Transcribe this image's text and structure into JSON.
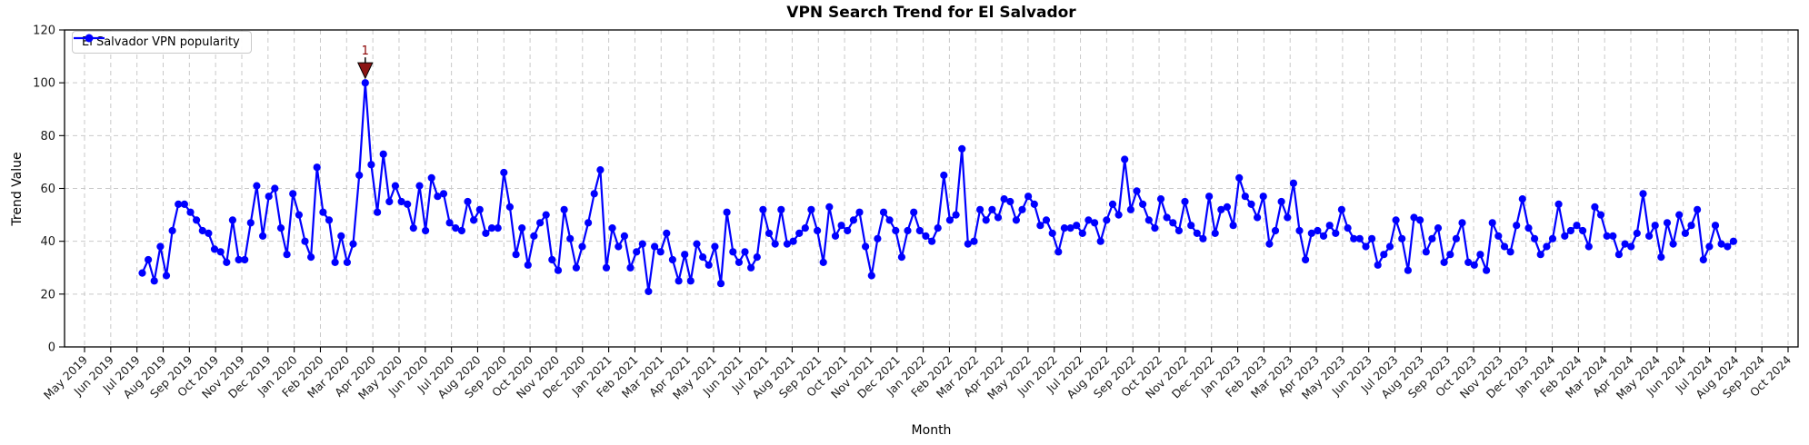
{
  "chart_data": {
    "type": "line",
    "title": "VPN Search Trend for El Salvador",
    "xlabel": "Month",
    "ylabel": "Trend Value",
    "ylim": [
      0,
      120
    ],
    "yticks": [
      0,
      20,
      40,
      60,
      80,
      100,
      120
    ],
    "grid": true,
    "background_color": "#ffffff",
    "grid_color": "#c9c9c9",
    "legend": {
      "label": "El Salvador VPN popularity",
      "position": "upper left"
    },
    "x_tick_labels": [
      "May 2019",
      "Jun 2019",
      "Jul 2019",
      "Aug 2019",
      "Sep 2019",
      "Oct 2019",
      "Nov 2019",
      "Dec 2019",
      "Jan 2020",
      "Feb 2020",
      "Mar 2020",
      "Apr 2020",
      "May 2020",
      "Jun 2020",
      "Jul 2020",
      "Aug 2020",
      "Sep 2020",
      "Oct 2020",
      "Nov 2020",
      "Dec 2020",
      "Jan 2021",
      "Feb 2021",
      "Mar 2021",
      "Apr 2021",
      "May 2021",
      "Jun 2021",
      "Jul 2021",
      "Aug 2021",
      "Sep 2021",
      "Oct 2021",
      "Nov 2021",
      "Dec 2021",
      "Jan 2022",
      "Feb 2022",
      "Mar 2022",
      "Apr 2022",
      "May 2022",
      "Jun 2022",
      "Jul 2022",
      "Aug 2022",
      "Sep 2022",
      "Oct 2022",
      "Nov 2022",
      "Dec 2022",
      "Jan 2023",
      "Feb 2023",
      "Mar 2023",
      "Apr 2023",
      "May 2023",
      "Jun 2023",
      "Jul 2023",
      "Aug 2023",
      "Sep 2023",
      "Oct 2023",
      "Nov 2023",
      "Dec 2023",
      "Jan 2024",
      "Feb 2024",
      "Mar 2024",
      "Apr 2024",
      "May 2024",
      "Jun 2024",
      "Jul 2024",
      "Aug 2024",
      "Sep 2024",
      "Oct 2024"
    ],
    "annotation": {
      "text": "1",
      "at_value": 100,
      "text_color": "#8b0000",
      "arrow_fill": "#8b1414",
      "arrow_edge": "#000000"
    },
    "series": [
      {
        "name": "El Salvador VPN popularity",
        "color": "#0000ff",
        "marker": "circle",
        "frequency": "weekly",
        "start_date": "2019-07-07",
        "values": [
          28,
          33,
          25,
          38,
          27,
          44,
          54,
          54,
          51,
          48,
          44,
          43,
          37,
          36,
          32,
          48,
          33,
          33,
          47,
          61,
          42,
          57,
          60,
          45,
          35,
          58,
          50,
          40,
          34,
          68,
          51,
          48,
          32,
          42,
          32,
          39,
          65,
          100,
          69,
          51,
          73,
          55,
          61,
          55,
          54,
          45,
          61,
          44,
          64,
          57,
          58,
          47,
          45,
          44,
          55,
          48,
          52,
          43,
          45,
          45,
          66,
          53,
          35,
          45,
          31,
          42,
          47,
          50,
          33,
          29,
          52,
          41,
          30,
          38,
          47,
          58,
          67,
          30,
          45,
          38,
          42,
          30,
          36,
          39,
          21,
          38,
          36,
          43,
          33,
          25,
          35,
          25,
          39,
          34,
          31,
          38,
          24,
          51,
          36,
          32,
          36,
          30,
          34,
          52,
          43,
          39,
          52,
          39,
          40,
          43,
          45,
          52,
          44,
          32,
          53,
          42,
          46,
          44,
          48,
          51,
          38,
          27,
          41,
          51,
          48,
          44,
          34,
          44,
          51,
          44,
          42,
          40,
          45,
          65,
          48,
          50,
          75,
          39,
          40,
          52,
          48,
          52,
          49,
          56,
          55,
          48,
          52,
          57,
          54,
          46,
          48,
          43,
          36,
          45,
          45,
          46,
          43,
          48,
          47,
          40,
          48,
          54,
          50,
          71,
          52,
          59,
          54,
          48,
          45,
          56,
          49,
          47,
          44,
          55,
          46,
          43,
          41,
          57,
          43,
          52,
          53,
          46,
          64,
          57,
          54,
          49,
          57,
          39,
          44,
          55,
          49,
          62,
          44,
          33,
          43,
          44,
          42,
          46,
          43,
          52,
          45,
          41,
          41,
          38,
          41,
          31,
          35,
          38,
          48,
          41,
          29,
          49,
          48,
          36,
          41,
          45,
          32,
          35,
          41,
          47,
          32,
          31,
          35,
          29,
          47,
          42,
          38,
          36,
          46,
          56,
          45,
          41,
          35,
          38,
          41,
          54,
          42,
          44,
          46,
          44,
          38,
          53,
          50,
          42,
          42,
          35,
          39,
          38,
          43,
          58,
          42,
          46,
          34,
          47,
          39,
          50,
          43,
          46,
          52,
          33,
          38,
          46,
          39,
          38,
          40
        ]
      }
    ]
  }
}
